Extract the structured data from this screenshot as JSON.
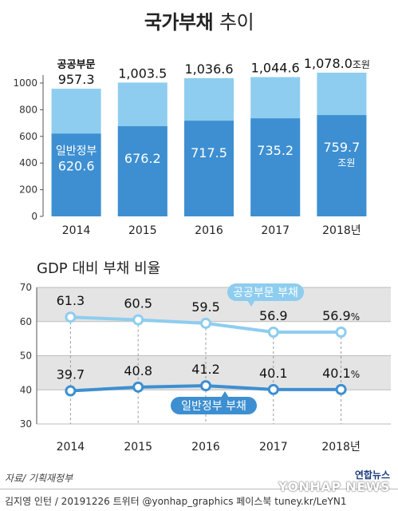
{
  "title_bold": "국가부채",
  "title_light": "추이",
  "chart_data": [
    {
      "type": "bar",
      "categories": [
        "2014",
        "2015",
        "2016",
        "2017",
        "2018년"
      ],
      "series": [
        {
          "name": "일반정부",
          "values": [
            620.6,
            676.2,
            717.5,
            735.2,
            759.7
          ]
        },
        {
          "name": "공공부문",
          "values": [
            957.3,
            1003.5,
            1036.6,
            1044.6,
            1078.0
          ]
        }
      ],
      "value_labels": {
        "general": [
          "620.6",
          "676.2",
          "717.5",
          "735.2",
          "759.7"
        ],
        "total": [
          "957.3",
          "1,003.5",
          "1,036.6",
          "1,044.6",
          "1,078.0"
        ]
      },
      "total_unit": "조원",
      "general_unit": "조원",
      "yticks": [
        "0",
        "200",
        "400",
        "600",
        "800",
        "1000"
      ],
      "ylim": [
        0,
        1100
      ],
      "colors": {
        "total": "#8ecdef",
        "general": "#3d8fd1"
      }
    },
    {
      "type": "line",
      "title": "GDP 대비 부채 비율",
      "x": [
        "2014",
        "2015",
        "2016",
        "2017",
        "2018년"
      ],
      "series": [
        {
          "name": "공공부문 부채",
          "values": [
            61.3,
            60.5,
            59.5,
            56.9,
            56.9
          ],
          "labels": [
            "61.3",
            "60.5",
            "59.5",
            "56.9",
            "56.9"
          ]
        },
        {
          "name": "일반정부 부채",
          "values": [
            39.7,
            40.8,
            41.2,
            40.1,
            40.1
          ],
          "labels": [
            "39.7",
            "40.8",
            "41.2",
            "40.1",
            "40.1"
          ]
        }
      ],
      "last_unit": "%",
      "yticks": [
        "30",
        "40",
        "50",
        "60",
        "70"
      ],
      "ylim": [
        30,
        70
      ],
      "grid": true,
      "colors": {
        "public": "#8ecdef",
        "general": "#3d8fd1"
      }
    }
  ],
  "source": "자료/ 기획재정부",
  "footer": "김지영 인턴 / 20191226 트위터 @yonhap_graphics  페이스북 tuney.kr/LeYN1",
  "logo_top": "연합뉴스",
  "logo_main": "YONHAP NEWS"
}
